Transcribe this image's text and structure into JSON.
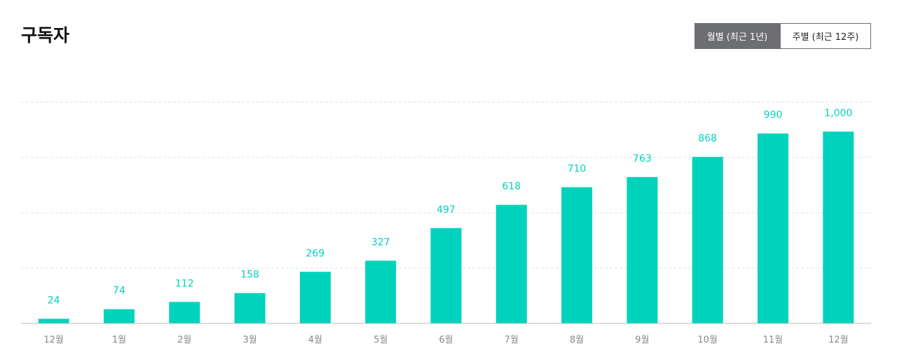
{
  "chart_data": {
    "type": "bar",
    "title": "구독자",
    "categories": [
      "12월",
      "1월",
      "2월",
      "3월",
      "4월",
      "5월",
      "6월",
      "7월",
      "8월",
      "9월",
      "10월",
      "11월",
      "12월"
    ],
    "values": [
      24,
      74,
      112,
      158,
      269,
      327,
      497,
      618,
      710,
      763,
      868,
      990,
      1000
    ],
    "value_labels": [
      "24",
      "74",
      "112",
      "158",
      "269",
      "327",
      "497",
      "618",
      "710",
      "763",
      "868",
      "990",
      "1,000"
    ],
    "color": "#00d3bb",
    "ylim": [
      0,
      1153
    ],
    "yticks": [
      288,
      577,
      865,
      1153
    ],
    "grid": true
  },
  "controls": [
    "월별 (최근 1년)",
    "주별 (최근 12주)"
  ]
}
